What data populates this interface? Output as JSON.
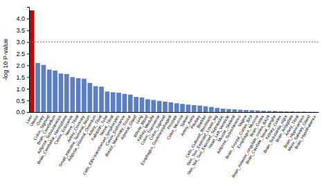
{
  "chart_data": {
    "type": "bar",
    "categories": [
      "Liver",
      "Uterus",
      "Ovary",
      "Colon_Sigmoid",
      "Brain_Cerebellum",
      "Adipose_Subcutaneous",
      "Brain_Cerebellar_Hemisphere",
      "Cervix_Ectocervix",
      "Nerve_Tibial",
      "Artery_Coronary",
      "Small_Intestine_Terminal_Ileum",
      "Adipose_Visceral_Omentum",
      "Artery_Tibial",
      "Fallopian_Tube",
      "Nerve_Tibial",
      "Cells_EBV-transformed_lymphocytes",
      "Cervix_Endocervix",
      "Breast_Mammary_Tissue",
      "Adrenal_Gland",
      "Lung",
      "Whole_Blood",
      "Kidney_Medulla",
      "Colon_Transverse",
      "Colon_Sigmoid",
      "Esophagus_Gastroesophageal",
      "Prostate",
      "Colon_Mucosa",
      "Spleen",
      "Artery_Aorta",
      "Pituitary",
      "Bladder",
      "Cells_Cultured_fibroblasts",
      "Skin_Sun_Exposed_Lower_leg",
      "Skin_Not_Sun_Exposed_Suprapubic",
      "Heart_Left_Ventricle",
      "Muscle_Skeletal",
      "Adipose_Subcutaneous",
      "Vagina",
      "Brain_Frontal_Cortex_BA9",
      "Esophagus_Mucosa",
      "Brain_Cortex",
      "Brain_Anterior_cingulate_cortex_BA24",
      "Brain_Caudate_basal_ganglia",
      "Kidney_Cortex",
      "Brain_Substantia_nigra",
      "Brain_Amygdala",
      "Artery_Tibial",
      "Brain_Hippocampus",
      "Minor_Salivary_Gland",
      "Brain_Hypothalamus"
    ],
    "values": [
      4.35,
      2.1,
      2.02,
      1.82,
      1.78,
      1.65,
      1.63,
      1.5,
      1.45,
      1.43,
      1.25,
      1.11,
      1.09,
      0.88,
      0.85,
      0.83,
      0.78,
      0.75,
      0.65,
      0.63,
      0.55,
      0.52,
      0.48,
      0.45,
      0.42,
      0.38,
      0.35,
      0.32,
      0.3,
      0.28,
      0.25,
      0.22,
      0.18,
      0.15,
      0.13,
      0.12,
      0.1,
      0.09,
      0.08,
      0.07,
      0.06,
      0.05,
      0.05,
      0.04,
      0.03,
      0.03,
      0.02,
      0.02,
      0.01,
      0.01
    ],
    "colors": [
      "#cc0000",
      "#5b7ec4",
      "#5b7ec4",
      "#5b7ec4",
      "#5b7ec4",
      "#5b7ec4",
      "#5b7ec4",
      "#5b7ec4",
      "#5b7ec4",
      "#5b7ec4",
      "#5b7ec4",
      "#5b7ec4",
      "#5b7ec4",
      "#5b7ec4",
      "#5b7ec4",
      "#5b7ec4",
      "#5b7ec4",
      "#5b7ec4",
      "#5b7ec4",
      "#5b7ec4",
      "#5b7ec4",
      "#5b7ec4",
      "#5b7ec4",
      "#5b7ec4",
      "#5b7ec4",
      "#5b7ec4",
      "#5b7ec4",
      "#5b7ec4",
      "#5b7ec4",
      "#5b7ec4",
      "#5b7ec4",
      "#5b7ec4",
      "#5b7ec4",
      "#5b7ec4",
      "#5b7ec4",
      "#5b7ec4",
      "#5b7ec4",
      "#5b7ec4",
      "#5b7ec4",
      "#5b7ec4",
      "#5b7ec4",
      "#5b7ec4",
      "#5b7ec4",
      "#5b7ec4",
      "#5b7ec4",
      "#5b7ec4",
      "#5b7ec4",
      "#5b7ec4",
      "#5b7ec4",
      "#5b7ec4"
    ],
    "threshold": 3.0,
    "ylabel": "-log 10 P-value",
    "ylim": [
      0,
      4.5
    ],
    "yticks": [
      {
        "value": 0.0,
        "label": "0.0"
      },
      0.5,
      {
        "value": 1.0,
        "label": "1.0"
      },
      1.5,
      {
        "value": 2.0,
        "label": "2.0"
      },
      2.5,
      {
        "value": 3.0,
        "label": "3.0"
      },
      3.5,
      {
        "value": 4.0,
        "label": "4.0"
      }
    ],
    "grid": false
  }
}
